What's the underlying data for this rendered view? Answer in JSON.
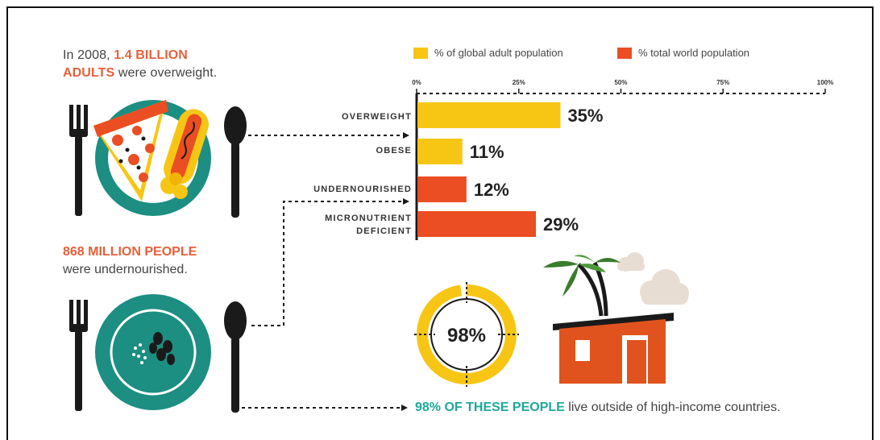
{
  "intro": {
    "prefix": "In 2008, ",
    "highlight_1": "1.4 BILLION",
    "highlight_2": "ADULTS",
    "suffix": " were overweight."
  },
  "under": {
    "highlight": "868 MILLION PEOPLE",
    "suffix": "were undernourished."
  },
  "bottom": {
    "highlight": "98% OF THESE PEOPLE",
    "suffix": " live outside of high-income countries."
  },
  "donut": {
    "value": 0.98,
    "label": "98%"
  },
  "colors": {
    "yellow": "#f7c614",
    "orange": "#ea4e22",
    "teal": "#1c8e82",
    "dark": "#1a1a1a",
    "accent_text": "#e8603a",
    "teal_text": "#1fa79a"
  },
  "icons": [
    "fork-icon",
    "spoon-icon",
    "pizza-icon",
    "hotdog-icon",
    "beans-icon",
    "house-icon",
    "palm-tree-icon",
    "cloud-icon"
  ],
  "chart_data": {
    "type": "bar",
    "orientation": "horizontal",
    "categories": [
      "OVERWEIGHT",
      "OBESE",
      "UNDERNOURISHED",
      "MICRONUTRIENT DEFICIENT"
    ],
    "values": [
      35,
      11,
      12,
      29
    ],
    "value_labels": [
      "35%",
      "11%",
      "12%",
      "29%"
    ],
    "bar_series": [
      "% of global adult population",
      "% of global adult population",
      "% total world population",
      "% total world population"
    ],
    "series": [
      {
        "name": "% of global adult population",
        "color": "#f7c614"
      },
      {
        "name": "% total world population",
        "color": "#ea4e22"
      }
    ],
    "ticks": [
      "0%",
      "25%",
      "50%",
      "75%",
      "100%"
    ],
    "xlim": [
      0,
      100
    ],
    "legend": "top",
    "grid": false
  }
}
